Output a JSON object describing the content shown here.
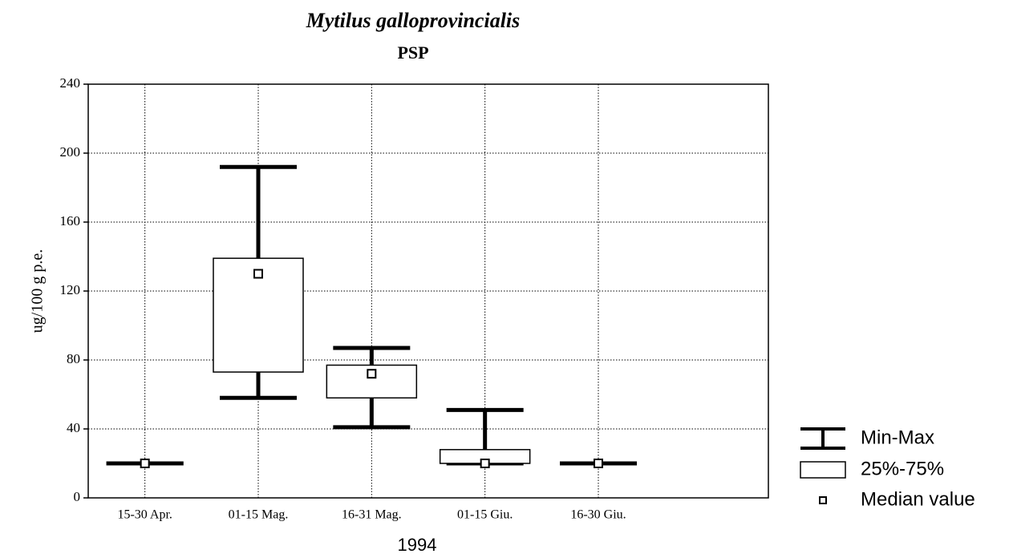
{
  "chart_data": {
    "type": "box",
    "title": "Mytilus galloprovincialis",
    "subtitle": "PSP",
    "y_label": "ug/100 g  p.e.",
    "x_label": "1994",
    "categories": [
      "15-30 Apr.",
      "01-15 Mag.",
      "16-31 Mag.",
      "01-15 Giu.",
      "16-30 Giu.",
      null
    ],
    "min": [
      20,
      58,
      41,
      20,
      20,
      null
    ],
    "q1": [
      20,
      73,
      58,
      20,
      20,
      null
    ],
    "median": [
      20,
      130,
      72,
      20,
      20,
      null
    ],
    "q3": [
      20,
      139,
      77,
      28,
      20,
      null
    ],
    "max": [
      20,
      192,
      87,
      51,
      20,
      null
    ],
    "legend": [
      "Min-Max",
      "25%-75%",
      "Median value"
    ],
    "ylim": [
      0,
      240
    ],
    "yticks": [
      0,
      40,
      80,
      120,
      160,
      200,
      240
    ],
    "grid": true
  }
}
